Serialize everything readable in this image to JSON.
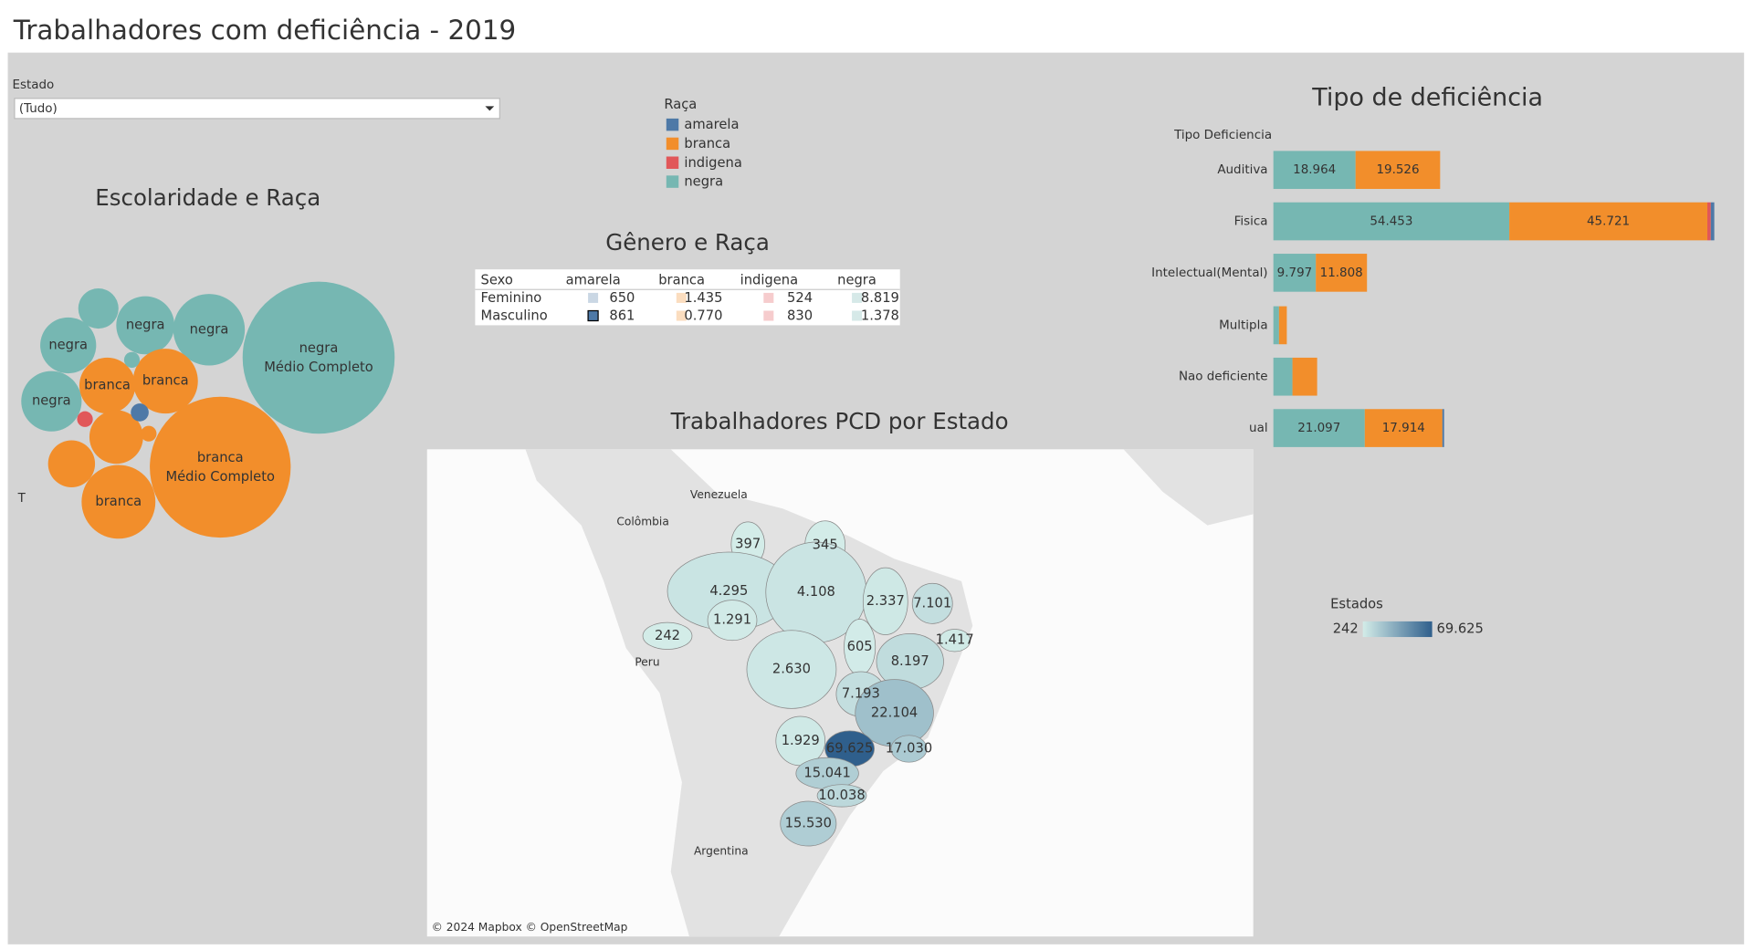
{
  "header": {
    "title": "Trabalhadores com deficiência - 2019"
  },
  "filter": {
    "label": "Estado",
    "value": "(Tudo)"
  },
  "legend": {
    "title": "Raça",
    "items": [
      {
        "label": "amarela",
        "color": "#4e79a7"
      },
      {
        "label": "branca",
        "color": "#f28e2b"
      },
      {
        "label": "indigena",
        "color": "#e15759"
      },
      {
        "label": "negra",
        "color": "#76b7b2"
      }
    ]
  },
  "escolaridade": {
    "title": "Escolaridade e Raça",
    "bubbles": [
      {
        "label": "negra",
        "level": "Médio Completo",
        "color": "#76b7b2",
        "value": 30000
      },
      {
        "label": "branca",
        "level": "Médio Completo",
        "color": "#f28e2b",
        "value": 25750
      },
      {
        "label": "negra",
        "color": "#76b7b2",
        "value": 6640
      },
      {
        "label": "negra",
        "color": "#76b7b2",
        "value": 4390
      },
      {
        "label": "negra",
        "color": "#76b7b2",
        "value": 4060
      },
      {
        "label": "negra",
        "color": "#76b7b2",
        "value": 4730
      },
      {
        "label": "branca",
        "color": "#f28e2b",
        "value": 4060
      },
      {
        "label": "branca",
        "color": "#f28e2b",
        "value": 5460
      },
      {
        "label": "branca",
        "color": "#f28e2b",
        "value": 7070
      },
      {
        "color": "#76b7b2",
        "value": 2100
      },
      {
        "color": "#f28e2b",
        "value": 3740
      },
      {
        "color": "#f28e2b",
        "value": 2860
      },
      {
        "color": "#76b7b2",
        "value": 320
      },
      {
        "color": "#e15759",
        "value": 320
      },
      {
        "color": "#4e79a7",
        "value": 415
      },
      {
        "color": "#f28e2b",
        "value": 320
      }
    ]
  },
  "stray_text": "T",
  "genero": {
    "title": "Gênero e Raça",
    "columns": [
      "Sexo",
      "amarela",
      "branca",
      "indigena",
      "negra"
    ],
    "rows": [
      [
        "Feminino",
        "650",
        "1.435",
        "524",
        "8.819"
      ],
      [
        "Masculino",
        "861",
        "0.770",
        "830",
        "1.378"
      ]
    ]
  },
  "mapa": {
    "title": "Trabalhadores PCD por Estado",
    "values": [
      397,
      345,
      4295,
      4108,
      2337,
      7101,
      1417,
      242,
      1291,
      2630,
      605,
      8197,
      7193,
      22104,
      1929,
      69625,
      17030,
      15041,
      10038,
      15530
    ],
    "value_labels": [
      "397",
      "345",
      "4.295",
      "4.108",
      "2.337",
      "7.101",
      "1.417",
      "242",
      "1.291",
      "2.630",
      "605",
      "8.197",
      "7.193",
      "22.104",
      "1.929",
      "69.625",
      "17.030",
      "15.041",
      "10.038",
      "15.530"
    ],
    "places": [
      "Venezuela",
      "Colômbia",
      "Peru",
      "Argentina"
    ],
    "credit": "© 2024 Mapbox © OpenStreetMap",
    "legend": {
      "title": "Estados",
      "min": {
        "value": 242,
        "label": "242"
      },
      "max": {
        "value": 69625,
        "label": "69.625"
      },
      "colors": [
        "#d3ece8",
        "#2f5f8c"
      ]
    }
  },
  "tipo": {
    "title": "Tipo de deficiência",
    "axis_title": "Tipo Deficiencia",
    "categories": [
      "Auditiva",
      "Fisica",
      "Intelectual(Mental)",
      "Multipla",
      "Nao deficiente",
      "ual"
    ],
    "series": [
      {
        "color": "#76b7b2",
        "values": [
          18964,
          54453,
          9797,
          1300,
          4400,
          21097
        ],
        "value_labels": [
          "18.964",
          "54.453",
          "9.797",
          null,
          null,
          "21.097"
        ]
      },
      {
        "color": "#f28e2b",
        "values": [
          19526,
          45721,
          11808,
          1800,
          5700,
          17914
        ],
        "value_labels": [
          "19.526",
          "45.721",
          "11.808",
          null,
          null,
          "17.914"
        ]
      },
      {
        "color": "#e15759",
        "values": [
          0,
          800,
          0,
          0,
          0,
          0
        ]
      },
      {
        "color": "#4e79a7",
        "values": [
          0,
          800,
          0,
          0,
          0,
          400
        ]
      }
    ]
  }
}
